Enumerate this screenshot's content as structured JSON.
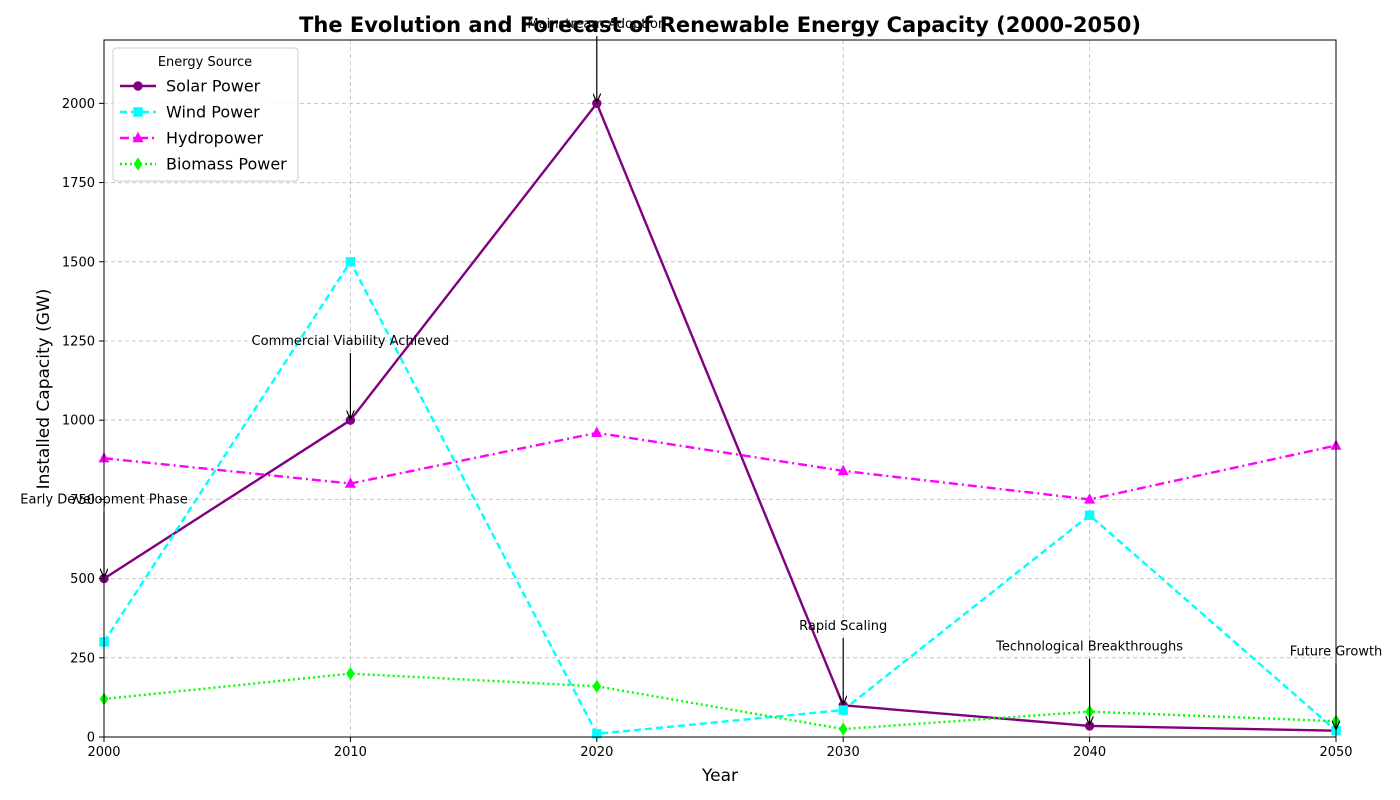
{
  "chart_data": {
    "type": "line",
    "title": "The Evolution and Forecast of Renewable Energy Capacity (2000-2050)",
    "xlabel": "Year",
    "ylabel": "Installed Capacity (GW)",
    "x": [
      2000,
      2010,
      2020,
      2030,
      2040,
      2050
    ],
    "xlim": [
      2000,
      2050
    ],
    "ylim": [
      0,
      2200
    ],
    "x_ticks": [
      2000,
      2010,
      2020,
      2030,
      2040,
      2050
    ],
    "y_ticks": [
      0,
      250,
      500,
      750,
      1000,
      1250,
      1500,
      1750,
      2000
    ],
    "grid": true,
    "legend": {
      "title": "Energy Source",
      "placement": "top-left"
    },
    "series": [
      {
        "name": "Solar Power",
        "values": [
          500,
          1000,
          2000,
          100,
          35,
          20
        ],
        "color": "#800080",
        "line_style": "solid",
        "marker": "circle"
      },
      {
        "name": "Wind Power",
        "values": [
          300,
          1500,
          10,
          85,
          700,
          20
        ],
        "color": "#00ffff",
        "line_style": "dashed",
        "marker": "square"
      },
      {
        "name": "Hydropower",
        "values": [
          880,
          800,
          960,
          840,
          750,
          920
        ],
        "color": "#ff00ff",
        "line_style": "dashdot",
        "marker": "triangle"
      },
      {
        "name": "Biomass Power",
        "values": [
          120,
          200,
          160,
          25,
          80,
          50
        ],
        "color": "#00ff00",
        "line_style": "dotted",
        "marker": "diamond"
      }
    ],
    "annotations": [
      {
        "text": "Early Development Phase",
        "x": 2000,
        "y": 500,
        "text_y": 750
      },
      {
        "text": "Commercial Viability Achieved",
        "x": 2010,
        "y": 1000,
        "text_y": 1250
      },
      {
        "text": "Mainstream Adoption",
        "x": 2020,
        "y": 2000,
        "text_y": 2250
      },
      {
        "text": "Rapid Scaling",
        "x": 2030,
        "y": 100,
        "text_y": 350
      },
      {
        "text": "Technological Breakthroughs",
        "x": 2040,
        "y": 35,
        "text_y": 285
      },
      {
        "text": "Future Growth",
        "x": 2050,
        "y": 20,
        "text_y": 270
      }
    ]
  }
}
